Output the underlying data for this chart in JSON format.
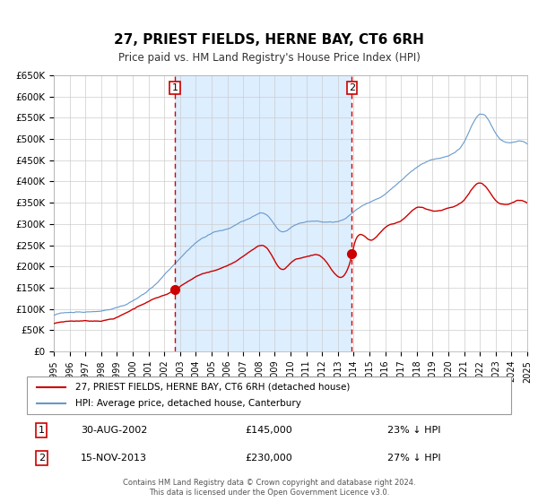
{
  "title": "27, PRIEST FIELDS, HERNE BAY, CT6 6RH",
  "subtitle": "Price paid vs. HM Land Registry's House Price Index (HPI)",
  "legend_line1": "27, PRIEST FIELDS, HERNE BAY, CT6 6RH (detached house)",
  "legend_line2": "HPI: Average price, detached house, Canterbury",
  "marker1_label": "1",
  "marker2_label": "2",
  "marker1_date": "30-AUG-2002",
  "marker1_price": "£145,000",
  "marker1_hpi": "23% ↓ HPI",
  "marker2_date": "15-NOV-2013",
  "marker2_price": "£230,000",
  "marker2_hpi": "27% ↓ HPI",
  "marker1_x": 2002.67,
  "marker1_y": 145000,
  "marker2_x": 2013.88,
  "marker2_y": 230000,
  "ylim": [
    0,
    650000
  ],
  "xlim": [
    1995,
    2025
  ],
  "yticks": [
    0,
    50000,
    100000,
    150000,
    200000,
    250000,
    300000,
    350000,
    400000,
    450000,
    500000,
    550000,
    600000,
    650000
  ],
  "red_color": "#cc0000",
  "blue_color": "#6699cc",
  "shade_color": "#ddeeff",
  "grid_color": "#cccccc",
  "background_color": "#ffffff",
  "footnote_line1": "Contains HM Land Registry data © Crown copyright and database right 2024.",
  "footnote_line2": "This data is licensed under the Open Government Licence v3.0."
}
